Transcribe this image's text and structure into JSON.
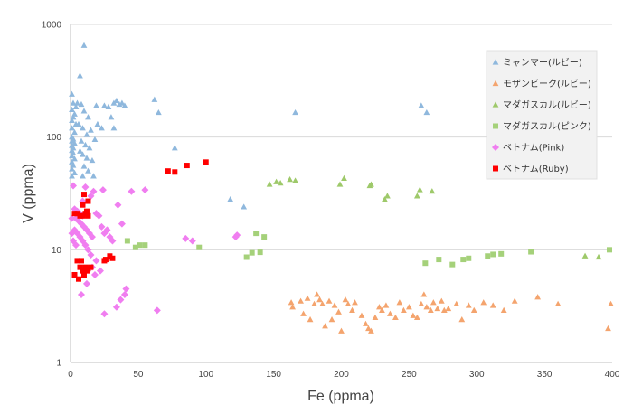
{
  "chart_data": {
    "type": "scatter",
    "xlabel": "Fe (ppma)",
    "ylabel": "V (ppma)",
    "xlim": [
      0,
      400
    ],
    "ylim": [
      1,
      1000
    ],
    "y_scale": "log",
    "x_ticks": [
      "0",
      "50",
      "100",
      "150",
      "200",
      "250",
      "300",
      "350",
      "400"
    ],
    "y_ticks": [
      "1",
      "10",
      "100",
      "1000"
    ],
    "grid": "horizontal",
    "legend_position": "right",
    "series": [
      {
        "name": "ミャンマー(ルビー)",
        "marker": "triangle",
        "color": "#8fb8dd",
        "points": [
          [
            10,
            650
          ],
          [
            7,
            350
          ],
          [
            1,
            240
          ],
          [
            2,
            200
          ],
          [
            4,
            185
          ],
          [
            1,
            175
          ],
          [
            3,
            160
          ],
          [
            2,
            150
          ],
          [
            1,
            140
          ],
          [
            4,
            130
          ],
          [
            1,
            120
          ],
          [
            3,
            110
          ],
          [
            1,
            100
          ],
          [
            2,
            96
          ],
          [
            1,
            92
          ],
          [
            3,
            88
          ],
          [
            1,
            84
          ],
          [
            2,
            80
          ],
          [
            1,
            76
          ],
          [
            2,
            72
          ],
          [
            1,
            68
          ],
          [
            3,
            64
          ],
          [
            1,
            60
          ],
          [
            2,
            56
          ],
          [
            1,
            52
          ],
          [
            3,
            48
          ],
          [
            1,
            45
          ],
          [
            5,
            200
          ],
          [
            8,
            195
          ],
          [
            10,
            170
          ],
          [
            13,
            150
          ],
          [
            6,
            130
          ],
          [
            9,
            120
          ],
          [
            12,
            105
          ],
          [
            15,
            115
          ],
          [
            8,
            92
          ],
          [
            11,
            85
          ],
          [
            14,
            80
          ],
          [
            7,
            75
          ],
          [
            9,
            70
          ],
          [
            12,
            65
          ],
          [
            16,
            62
          ],
          [
            10,
            55
          ],
          [
            13,
            50
          ],
          [
            17,
            45
          ],
          [
            9,
            45
          ],
          [
            20,
            130
          ],
          [
            23,
            120
          ],
          [
            18,
            95
          ],
          [
            19,
            190
          ],
          [
            25,
            190
          ],
          [
            28,
            185
          ],
          [
            32,
            200
          ],
          [
            34,
            210
          ],
          [
            36,
            195
          ],
          [
            38,
            200
          ],
          [
            40,
            190
          ],
          [
            30,
            150
          ],
          [
            32,
            120
          ],
          [
            62,
            215
          ],
          [
            65,
            165
          ],
          [
            77,
            80
          ],
          [
            118,
            28
          ],
          [
            128,
            24
          ],
          [
            166,
            165
          ],
          [
            259,
            190
          ],
          [
            263,
            165
          ]
        ]
      },
      {
        "name": "モザンビーク(ルビー)",
        "marker": "triangle",
        "color": "#f4a46e",
        "points": [
          [
            163,
            3.4
          ],
          [
            164,
            3.1
          ],
          [
            170,
            3.5
          ],
          [
            172,
            2.7
          ],
          [
            175,
            3.7
          ],
          [
            177,
            2.4
          ],
          [
            180,
            3.3
          ],
          [
            182,
            4.0
          ],
          [
            184,
            3.6
          ],
          [
            186,
            3.3
          ],
          [
            188,
            2.1
          ],
          [
            191,
            3.5
          ],
          [
            193,
            2.4
          ],
          [
            195,
            3.2
          ],
          [
            198,
            2.8
          ],
          [
            200,
            1.9
          ],
          [
            203,
            3.6
          ],
          [
            205,
            3.3
          ],
          [
            208,
            2.9
          ],
          [
            210,
            3.4
          ],
          [
            215,
            2.6
          ],
          [
            218,
            2.2
          ],
          [
            220,
            2.0
          ],
          [
            222,
            1.9
          ],
          [
            225,
            2.5
          ],
          [
            228,
            3.1
          ],
          [
            230,
            2.9
          ],
          [
            233,
            3.2
          ],
          [
            236,
            2.7
          ],
          [
            240,
            2.5
          ],
          [
            243,
            3.4
          ],
          [
            246,
            2.9
          ],
          [
            250,
            3.1
          ],
          [
            253,
            2.6
          ],
          [
            256,
            2.5
          ],
          [
            259,
            3.3
          ],
          [
            261,
            4.0
          ],
          [
            263,
            3.1
          ],
          [
            266,
            2.9
          ],
          [
            268,
            3.4
          ],
          [
            271,
            3.0
          ],
          [
            274,
            3.5
          ],
          [
            276,
            2.9
          ],
          [
            279,
            3.0
          ],
          [
            285,
            3.3
          ],
          [
            289,
            2.4
          ],
          [
            294,
            3.2
          ],
          [
            298,
            2.9
          ],
          [
            305,
            3.4
          ],
          [
            312,
            3.2
          ],
          [
            320,
            2.9
          ],
          [
            328,
            3.5
          ],
          [
            345,
            3.8
          ],
          [
            360,
            3.3
          ],
          [
            397,
            2.0
          ],
          [
            399,
            3.3
          ]
        ]
      },
      {
        "name": "マダガスカル(ルビー)",
        "marker": "triangle",
        "color": "#9ec96a",
        "points": [
          [
            147,
            38
          ],
          [
            152,
            40
          ],
          [
            155,
            39
          ],
          [
            162,
            42
          ],
          [
            166,
            41
          ],
          [
            199,
            38
          ],
          [
            202,
            43
          ],
          [
            221,
            37
          ],
          [
            222,
            38
          ],
          [
            232,
            28
          ],
          [
            234,
            30
          ],
          [
            256,
            30
          ],
          [
            258,
            34
          ],
          [
            267,
            33
          ],
          [
            380,
            8.8
          ],
          [
            390,
            8.6
          ]
        ]
      },
      {
        "name": "マダガスカル(ピンク)",
        "marker": "square",
        "color": "#a5d17a",
        "points": [
          [
            42,
            12
          ],
          [
            48,
            10.5
          ],
          [
            51,
            11
          ],
          [
            55,
            11
          ],
          [
            95,
            10.5
          ],
          [
            130,
            8.6
          ],
          [
            134,
            9.4
          ],
          [
            137,
            14
          ],
          [
            140,
            9.5
          ],
          [
            143,
            13
          ],
          [
            262,
            7.6
          ],
          [
            272,
            8.2
          ],
          [
            282,
            7.4
          ],
          [
            290,
            8.2
          ],
          [
            294,
            8.4
          ],
          [
            308,
            8.8
          ],
          [
            312,
            9.1
          ],
          [
            318,
            9.2
          ],
          [
            340,
            9.6
          ],
          [
            398,
            10
          ]
        ]
      },
      {
        "name": "ベトナム(Pink)",
        "marker": "diamond",
        "color": "#f07ef0",
        "points": [
          [
            2,
            37
          ],
          [
            3,
            23
          ],
          [
            5,
            22
          ],
          [
            7,
            21
          ],
          [
            9,
            20
          ],
          [
            4,
            19
          ],
          [
            6,
            18
          ],
          [
            8,
            17
          ],
          [
            10,
            16
          ],
          [
            12,
            15
          ],
          [
            14,
            14
          ],
          [
            16,
            13
          ],
          [
            3,
            15
          ],
          [
            5,
            14
          ],
          [
            7,
            13
          ],
          [
            9,
            12
          ],
          [
            11,
            11
          ],
          [
            13,
            10
          ],
          [
            2,
            12
          ],
          [
            4,
            11
          ],
          [
            1,
            14
          ],
          [
            1,
            19
          ],
          [
            15,
            30
          ],
          [
            17,
            33
          ],
          [
            19,
            21
          ],
          [
            21,
            20
          ],
          [
            24,
            34
          ],
          [
            27,
            15
          ],
          [
            23,
            16
          ],
          [
            25,
            14
          ],
          [
            29,
            13
          ],
          [
            31,
            12
          ],
          [
            35,
            25
          ],
          [
            38,
            17
          ],
          [
            45,
            33
          ],
          [
            55,
            34
          ],
          [
            11,
            36
          ],
          [
            9,
            27
          ],
          [
            12,
            5
          ],
          [
            8,
            4
          ],
          [
            18,
            6
          ],
          [
            22,
            6.5
          ],
          [
            25,
            2.7
          ],
          [
            34,
            3.1
          ],
          [
            37,
            3.6
          ],
          [
            40,
            4
          ],
          [
            41,
            4.5
          ],
          [
            64,
            2.9
          ],
          [
            85,
            12.6
          ],
          [
            90,
            12
          ],
          [
            122,
            13
          ],
          [
            123,
            13.5
          ],
          [
            15,
            9
          ],
          [
            19,
            8
          ],
          [
            16,
            7
          ]
        ]
      },
      {
        "name": "ベトナム(Ruby)",
        "marker": "square",
        "color": "#ff0000",
        "points": [
          [
            3,
            21
          ],
          [
            5,
            21
          ],
          [
            7,
            20
          ],
          [
            9,
            20
          ],
          [
            11,
            21
          ],
          [
            13,
            20
          ],
          [
            10,
            31
          ],
          [
            13,
            27
          ],
          [
            9,
            25
          ],
          [
            12,
            22
          ],
          [
            5,
            8
          ],
          [
            7,
            7
          ],
          [
            9,
            6.5
          ],
          [
            11,
            7
          ],
          [
            13,
            6.8
          ],
          [
            3,
            6
          ],
          [
            6,
            5.5
          ],
          [
            10,
            6
          ],
          [
            12,
            6.5
          ],
          [
            15,
            7
          ],
          [
            8,
            8
          ],
          [
            25,
            8
          ],
          [
            26,
            8.2
          ],
          [
            29,
            8.8
          ],
          [
            31,
            8.4
          ],
          [
            72,
            50
          ],
          [
            77,
            49
          ],
          [
            86,
            56
          ],
          [
            100,
            60
          ]
        ]
      }
    ]
  }
}
